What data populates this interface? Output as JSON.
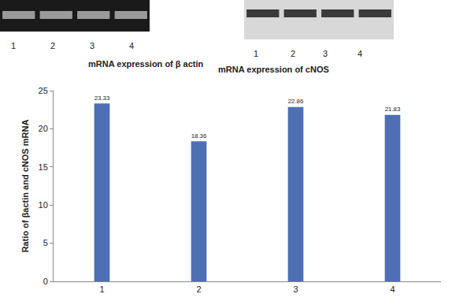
{
  "chart_data": {
    "type": "bar",
    "categories": [
      "1",
      "2",
      "3",
      "4"
    ],
    "values": [
      23.33,
      18.36,
      22.86,
      21.83
    ],
    "color": "#4f6fb5",
    "y_label": "Ratio of βactin and cNOS mRNA",
    "ylim": [
      0,
      25
    ],
    "yticks": [
      0,
      5,
      10,
      15,
      20,
      25
    ],
    "grid": false,
    "data_labels": true,
    "annotations": [
      {
        "text": "mRNA expression of β actin",
        "lanes": [
          "1",
          "2",
          "3",
          "4"
        ]
      },
      {
        "text": "mRNA expression of cNOS",
        "lanes": [
          "1",
          "2",
          "3",
          "4"
        ]
      }
    ]
  }
}
